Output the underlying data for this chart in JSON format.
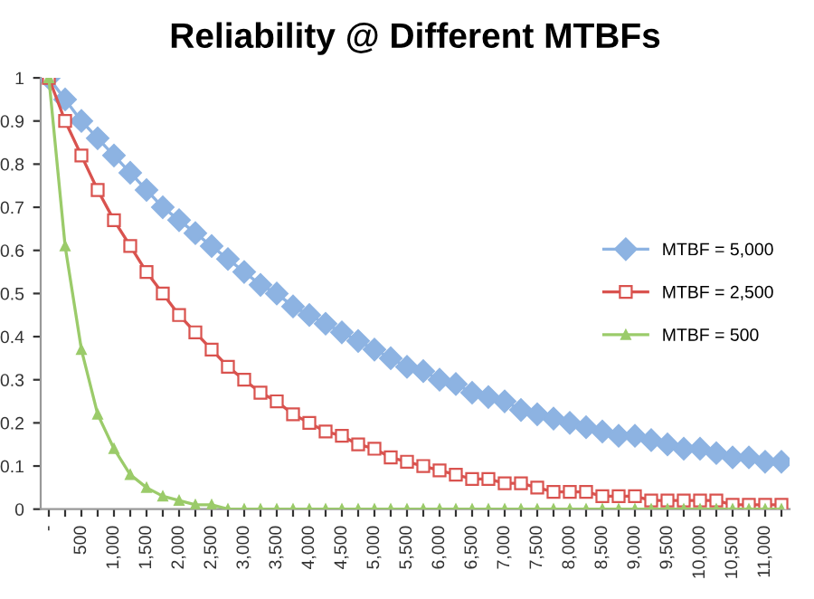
{
  "chart_data": {
    "type": "line",
    "title": "Reliability @ Different MTBFs",
    "categories": [
      "-",
      null,
      "500",
      null,
      "1,000",
      null,
      "1,500",
      null,
      "2,000",
      null,
      "2,500",
      null,
      "3,000",
      null,
      "3,500",
      null,
      "4,000",
      null,
      "4,500",
      null,
      "5,000",
      null,
      "5,500",
      null,
      "6,000",
      null,
      "6,500",
      null,
      "7,000",
      null,
      "7,500",
      null,
      "8,000",
      null,
      "8,500",
      null,
      "9,000",
      null,
      "9,500",
      null,
      "10,000",
      null,
      "10,500",
      null,
      "11,000",
      null
    ],
    "series": [
      {
        "name": "MTBF = 5,000",
        "color": "#8db3e2",
        "marker": "diamond",
        "values": [
          1.0,
          0.95,
          0.9,
          0.86,
          0.82,
          0.78,
          0.74,
          0.7,
          0.67,
          0.64,
          0.61,
          0.58,
          0.55,
          0.52,
          0.5,
          0.47,
          0.45,
          0.43,
          0.41,
          0.39,
          0.37,
          0.35,
          0.33,
          0.32,
          0.3,
          0.29,
          0.27,
          0.26,
          0.25,
          0.23,
          0.22,
          0.21,
          0.2,
          0.19,
          0.18,
          0.17,
          0.17,
          0.16,
          0.15,
          0.14,
          0.14,
          0.13,
          0.12,
          0.12,
          0.11,
          0.11
        ]
      },
      {
        "name": "MTBF = 2,500",
        "color": "#d9534f",
        "marker": "square",
        "values": [
          1.0,
          0.9,
          0.82,
          0.74,
          0.67,
          0.61,
          0.55,
          0.5,
          0.45,
          0.41,
          0.37,
          0.33,
          0.3,
          0.27,
          0.25,
          0.22,
          0.2,
          0.18,
          0.17,
          0.15,
          0.14,
          0.12,
          0.11,
          0.1,
          0.09,
          0.08,
          0.07,
          0.07,
          0.06,
          0.06,
          0.05,
          0.04,
          0.04,
          0.04,
          0.03,
          0.03,
          0.03,
          0.02,
          0.02,
          0.02,
          0.02,
          0.02,
          0.01,
          0.01,
          0.01,
          0.01
        ]
      },
      {
        "name": "MTBF = 500",
        "color": "#9bcb6a",
        "marker": "triangle",
        "values": [
          1.0,
          0.61,
          0.37,
          0.22,
          0.14,
          0.08,
          0.05,
          0.03,
          0.02,
          0.01,
          0.01,
          0,
          0,
          0,
          0,
          0,
          0,
          0,
          0,
          0,
          0,
          0,
          0,
          0,
          0,
          0,
          0,
          0,
          0,
          0,
          0,
          0,
          0,
          0,
          0,
          0,
          0,
          0,
          0,
          0,
          0,
          0,
          0,
          0,
          0,
          0
        ]
      }
    ],
    "ylim": [
      0,
      1
    ],
    "yticks": [
      0,
      0.1,
      0.2,
      0.3,
      0.4,
      0.5,
      0.6,
      0.7,
      0.8,
      0.9,
      1
    ],
    "grid": false,
    "legend": "right",
    "line_style": "solid"
  }
}
